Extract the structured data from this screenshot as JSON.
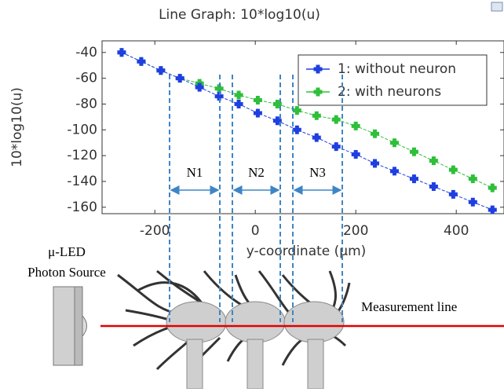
{
  "chart_data": {
    "type": "line",
    "title": "Line Graph: 10*log10(u)",
    "x_label": "y-coordinate (μm)",
    "y_label": "10*log10(u)",
    "x": [
      -266,
      -227,
      -188,
      -150,
      -111,
      -72,
      -33,
      5,
      44,
      83,
      122,
      161,
      200,
      238,
      277,
      316,
      355,
      394,
      433,
      472
    ],
    "series": [
      {
        "name": "1: without neuron",
        "color": "#1f3fe0",
        "values": [
          -40,
          -47,
          -54,
          -60,
          -67,
          -74,
          -80,
          -87,
          -93,
          -100,
          -106,
          -113,
          -119,
          -126,
          -132,
          -138,
          -144,
          -150,
          -156,
          -162
        ]
      },
      {
        "name": "2: with neurons",
        "color": "#2fbf3a",
        "values": [
          -40,
          -47,
          -54,
          -60,
          -64,
          -68,
          -73,
          -77,
          -80,
          -85,
          -89,
          -92,
          -97,
          -103,
          -110,
          -117,
          -124,
          -131,
          -138,
          -145
        ]
      }
    ],
    "xlim": [
      -305,
      495
    ],
    "ylim": [
      -165,
      -31
    ],
    "xticks": [
      -200,
      0,
      200,
      400
    ],
    "yticks": [
      -160,
      -140,
      -120,
      -100,
      -80,
      -60,
      -40
    ],
    "grid": false,
    "legend": "upper right",
    "annotations": {
      "regions": [
        "N1",
        "N2",
        "N3"
      ],
      "source": [
        "μ-LED",
        "Photon Source"
      ],
      "line_label": "Measurement line"
    }
  }
}
